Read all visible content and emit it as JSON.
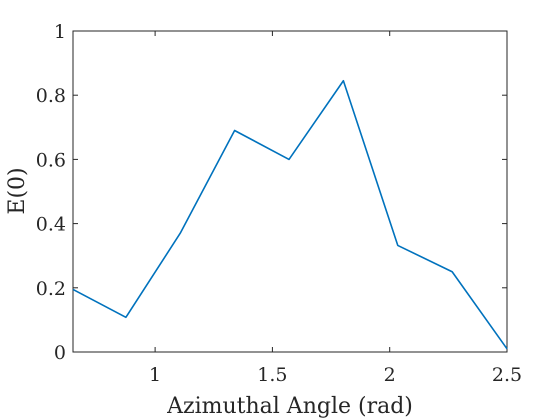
{
  "chart_data": {
    "type": "line",
    "title": "",
    "xlabel": "Azimuthal Angle (rad)",
    "ylabel": "E(0)",
    "xlim": [
      0.65,
      2.5
    ],
    "ylim": [
      0,
      1
    ],
    "xticks": [
      {
        "value": 1,
        "label": "1"
      },
      {
        "value": 1.5,
        "label": "1.5"
      },
      {
        "value": 2,
        "label": "2"
      },
      {
        "value": 2.5,
        "label": "2.5"
      }
    ],
    "yticks": [
      {
        "value": 0,
        "label": "0"
      },
      {
        "value": 0.2,
        "label": "0.2"
      },
      {
        "value": 0.4,
        "label": "0.4"
      },
      {
        "value": 0.6,
        "label": "0.6"
      },
      {
        "value": 0.8,
        "label": "0.8"
      },
      {
        "value": 1,
        "label": "1"
      }
    ],
    "grid": false,
    "series": [
      {
        "color": "#0072bd",
        "x": [
          0.65,
          0.8754,
          1.1071,
          1.3389,
          1.5708,
          1.8026,
          2.0344,
          2.2662,
          2.5
        ],
        "y": [
          0.195,
          0.108,
          0.37,
          0.69,
          0.6,
          0.845,
          0.332,
          0.25,
          0.01
        ]
      }
    ]
  }
}
